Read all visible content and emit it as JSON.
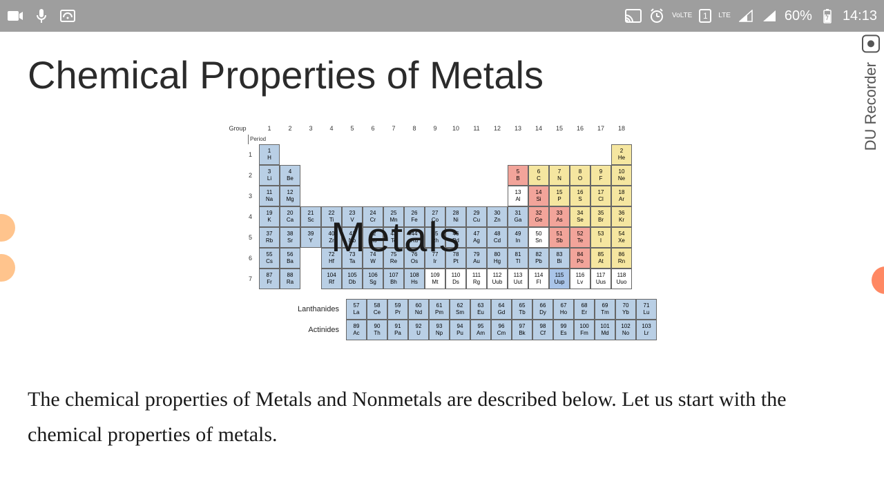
{
  "status": {
    "battery_text": "60%",
    "time": "14:13",
    "lte1": "VoLTE",
    "lte2": "LTE",
    "sim": "1"
  },
  "page": {
    "title": "Chemical Properties of Metals",
    "body": "The chemical properties of Metals and Nonmetals are described below. Let us start with the chemical properties of metals."
  },
  "watermark": "DU Recorder",
  "pt": {
    "group_header": "Group",
    "period_header": "Period",
    "overlay_text": "Metals",
    "lanth_label": "Lanthanides",
    "act_label": "Actinides",
    "colors": {
      "metal": "#b9cfe5",
      "metalloid_red": "#f2a49a",
      "nonmetal_yellow": "#f5e6a0",
      "post_trans": "#cfd8e3",
      "white": "#ffffff",
      "lv": "#a9c4e8",
      "border": "#666666"
    },
    "groups": [
      "1",
      "2",
      "3",
      "4",
      "5",
      "6",
      "7",
      "8",
      "9",
      "10",
      "11",
      "12",
      "13",
      "14",
      "15",
      "16",
      "17",
      "18"
    ],
    "periods": [
      "1",
      "2",
      "3",
      "4",
      "5",
      "6",
      "7"
    ],
    "main": [
      [
        [
          "1",
          "H",
          "metal"
        ],
        null,
        null,
        null,
        null,
        null,
        null,
        null,
        null,
        null,
        null,
        null,
        null,
        null,
        null,
        null,
        null,
        [
          "2",
          "He",
          "nonmetal_yellow"
        ]
      ],
      [
        [
          "3",
          "Li",
          "metal"
        ],
        [
          "4",
          "Be",
          "metal"
        ],
        null,
        null,
        null,
        null,
        null,
        null,
        null,
        null,
        null,
        null,
        [
          "5",
          "B",
          "metalloid_red"
        ],
        [
          "6",
          "C",
          "nonmetal_yellow"
        ],
        [
          "7",
          "N",
          "nonmetal_yellow"
        ],
        [
          "8",
          "O",
          "nonmetal_yellow"
        ],
        [
          "9",
          "F",
          "nonmetal_yellow"
        ],
        [
          "10",
          "Ne",
          "nonmetal_yellow"
        ]
      ],
      [
        [
          "11",
          "Na",
          "metal"
        ],
        [
          "12",
          "Mg",
          "metal"
        ],
        null,
        null,
        null,
        null,
        null,
        null,
        null,
        null,
        null,
        null,
        [
          "13",
          "Al",
          "white"
        ],
        [
          "14",
          "Si",
          "metalloid_red"
        ],
        [
          "15",
          "P",
          "nonmetal_yellow"
        ],
        [
          "16",
          "S",
          "nonmetal_yellow"
        ],
        [
          "17",
          "Cl",
          "nonmetal_yellow"
        ],
        [
          "18",
          "Ar",
          "nonmetal_yellow"
        ]
      ],
      [
        [
          "19",
          "K",
          "metal"
        ],
        [
          "20",
          "Ca",
          "metal"
        ],
        [
          "21",
          "Sc",
          "metal"
        ],
        [
          "22",
          "Ti",
          "metal"
        ],
        [
          "23",
          "V",
          "metal"
        ],
        [
          "24",
          "Cr",
          "metal"
        ],
        [
          "25",
          "Mn",
          "metal"
        ],
        [
          "26",
          "Fe",
          "metal"
        ],
        [
          "27",
          "Co",
          "metal"
        ],
        [
          "28",
          "Ni",
          "metal"
        ],
        [
          "29",
          "Cu",
          "metal"
        ],
        [
          "30",
          "Zn",
          "metal"
        ],
        [
          "31",
          "Ga",
          "metal"
        ],
        [
          "32",
          "Ge",
          "metalloid_red"
        ],
        [
          "33",
          "As",
          "metalloid_red"
        ],
        [
          "34",
          "Se",
          "nonmetal_yellow"
        ],
        [
          "35",
          "Br",
          "nonmetal_yellow"
        ],
        [
          "36",
          "Kr",
          "nonmetal_yellow"
        ]
      ],
      [
        [
          "37",
          "Rb",
          "metal"
        ],
        [
          "38",
          "Sr",
          "metal"
        ],
        [
          "39",
          "Y",
          "metal"
        ],
        [
          "40",
          "Zr",
          "metal"
        ],
        [
          "41",
          "Nb",
          "metal"
        ],
        [
          "42",
          "Mo",
          "metal"
        ],
        [
          "43",
          "Tc",
          "metal"
        ],
        [
          "44",
          "Ru",
          "metal"
        ],
        [
          "45",
          "Rh",
          "metal"
        ],
        [
          "46",
          "Pd",
          "metal"
        ],
        [
          "47",
          "Ag",
          "metal"
        ],
        [
          "48",
          "Cd",
          "metal"
        ],
        [
          "49",
          "In",
          "metal"
        ],
        [
          "50",
          "Sn",
          "white"
        ],
        [
          "51",
          "Sb",
          "metalloid_red"
        ],
        [
          "52",
          "Te",
          "metalloid_red"
        ],
        [
          "53",
          "I",
          "nonmetal_yellow"
        ],
        [
          "54",
          "Xe",
          "nonmetal_yellow"
        ]
      ],
      [
        [
          "55",
          "Cs",
          "metal"
        ],
        [
          "56",
          "Ba",
          "metal"
        ],
        null,
        [
          "72",
          "Hf",
          "metal"
        ],
        [
          "73",
          "Ta",
          "metal"
        ],
        [
          "74",
          "W",
          "metal"
        ],
        [
          "75",
          "Re",
          "metal"
        ],
        [
          "76",
          "Os",
          "metal"
        ],
        [
          "77",
          "Ir",
          "metal"
        ],
        [
          "78",
          "Pt",
          "metal"
        ],
        [
          "79",
          "Au",
          "metal"
        ],
        [
          "80",
          "Hg",
          "metal"
        ],
        [
          "81",
          "Tl",
          "metal"
        ],
        [
          "82",
          "Pb",
          "metal"
        ],
        [
          "83",
          "Bi",
          "metal"
        ],
        [
          "84",
          "Po",
          "metalloid_red"
        ],
        [
          "85",
          "At",
          "nonmetal_yellow"
        ],
        [
          "86",
          "Rn",
          "nonmetal_yellow"
        ]
      ],
      [
        [
          "87",
          "Fr",
          "metal"
        ],
        [
          "88",
          "Ra",
          "metal"
        ],
        null,
        [
          "104",
          "Rf",
          "metal"
        ],
        [
          "105",
          "Db",
          "metal"
        ],
        [
          "106",
          "Sg",
          "metal"
        ],
        [
          "107",
          "Bh",
          "metal"
        ],
        [
          "108",
          "Hs",
          "metal"
        ],
        [
          "109",
          "Mt",
          "white"
        ],
        [
          "110",
          "Ds",
          "white"
        ],
        [
          "111",
          "Rg",
          "white"
        ],
        [
          "112",
          "Uub",
          "white"
        ],
        [
          "113",
          "Uut",
          "white"
        ],
        [
          "114",
          "Fl",
          "white"
        ],
        [
          "115",
          "Uup",
          "lv"
        ],
        [
          "116",
          "Lv",
          "white"
        ],
        [
          "117",
          "Uus",
          "white"
        ],
        [
          "118",
          "Uuo",
          "white"
        ]
      ]
    ],
    "lanth": [
      [
        "57",
        "La"
      ],
      [
        "58",
        "Ce"
      ],
      [
        "59",
        "Pr"
      ],
      [
        "60",
        "Nd"
      ],
      [
        "61",
        "Pm"
      ],
      [
        "62",
        "Sm"
      ],
      [
        "63",
        "Eu"
      ],
      [
        "64",
        "Gd"
      ],
      [
        "65",
        "Tb"
      ],
      [
        "66",
        "Dy"
      ],
      [
        "67",
        "Ho"
      ],
      [
        "68",
        "Er"
      ],
      [
        "69",
        "Tm"
      ],
      [
        "70",
        "Yb"
      ],
      [
        "71",
        "Lu"
      ]
    ],
    "act": [
      [
        "89",
        "Ac"
      ],
      [
        "90",
        "Th"
      ],
      [
        "91",
        "Pa"
      ],
      [
        "92",
        "U"
      ],
      [
        "93",
        "Np"
      ],
      [
        "94",
        "Pu"
      ],
      [
        "95",
        "Am"
      ],
      [
        "96",
        "Cm"
      ],
      [
        "97",
        "Bk"
      ],
      [
        "98",
        "Cf"
      ],
      [
        "99",
        "Es"
      ],
      [
        "100",
        "Fm"
      ],
      [
        "101",
        "Md"
      ],
      [
        "102",
        "No"
      ],
      [
        "103",
        "Lr"
      ]
    ]
  }
}
